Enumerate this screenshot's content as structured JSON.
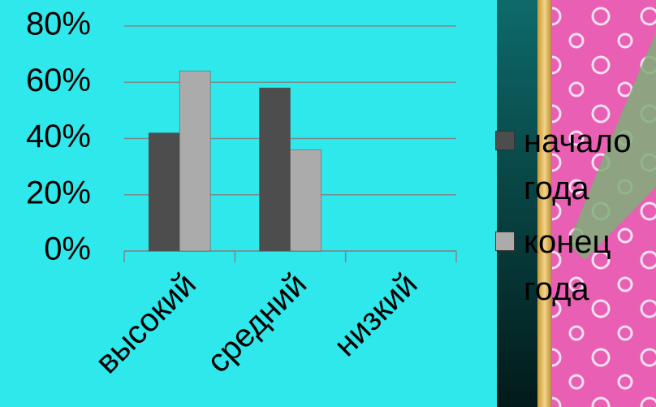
{
  "chart_data": {
    "type": "bar",
    "categories": [
      "высокий",
      "средний",
      "низкий"
    ],
    "series": [
      {
        "name": "начало года",
        "color": "#4d4d4d",
        "values": [
          42,
          58,
          0
        ]
      },
      {
        "name": "конец года",
        "color": "#ababab",
        "values": [
          64,
          36,
          0
        ]
      }
    ],
    "ylim": [
      0,
      80
    ],
    "yticks": [
      {
        "value": 0,
        "label": "0%"
      },
      {
        "value": 20,
        "label": "20%"
      },
      {
        "value": 40,
        "label": "40%"
      },
      {
        "value": 60,
        "label": "60%"
      },
      {
        "value": 80,
        "label": "80%"
      }
    ],
    "grid": true
  }
}
